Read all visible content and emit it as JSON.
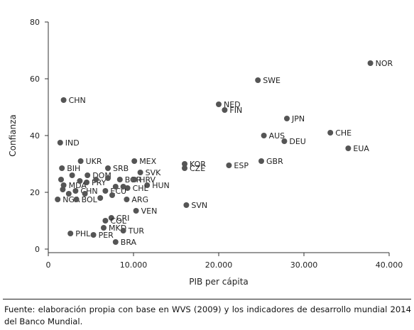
{
  "chart_data": {
    "type": "scatter",
    "title": "",
    "xlabel": "PIB per cápita",
    "ylabel": "Confianza",
    "xlim": [
      0,
      40000
    ],
    "ylim": [
      0,
      80
    ],
    "xticks": [
      0,
      10000,
      20000,
      30000,
      40000
    ],
    "xtick_labels": [
      "0",
      "10.000",
      "20.000",
      "30.000",
      "40.000"
    ],
    "yticks": [
      0,
      20,
      40,
      60,
      80
    ],
    "ytick_labels": [
      "0",
      "20",
      "40",
      "60",
      "80"
    ],
    "grid": false,
    "points": [
      {
        "label": "NOR",
        "x": 37800,
        "y": 65.5
      },
      {
        "label": "SWE",
        "x": 24600,
        "y": 59.5
      },
      {
        "label": "CHN",
        "x": 1800,
        "y": 52.5
      },
      {
        "label": "NED",
        "x": 20000,
        "y": 51.0
      },
      {
        "label": "FIN",
        "x": 20700,
        "y": 49.0
      },
      {
        "label": "JPN",
        "x": 28000,
        "y": 46.0
      },
      {
        "label": "CHE",
        "x": 33100,
        "y": 41.0
      },
      {
        "label": "AUS",
        "x": 25300,
        "y": 40.0
      },
      {
        "label": "DEU",
        "x": 27700,
        "y": 38.0
      },
      {
        "label": "IND",
        "x": 1400,
        "y": 37.5
      },
      {
        "label": "EUA",
        "x": 35200,
        "y": 35.5
      },
      {
        "label": "GBR",
        "x": 25000,
        "y": 31.0
      },
      {
        "label": "MEX",
        "x": 10100,
        "y": 31.0
      },
      {
        "label": "KOR",
        "x": 16000,
        "y": 30.0
      },
      {
        "label": "ESP",
        "x": 21200,
        "y": 29.5
      },
      {
        "label": "CZE",
        "x": 16000,
        "y": 28.5
      },
      {
        "label": "UKR",
        "x": 3800,
        "y": 31.0
      },
      {
        "label": "SRB",
        "x": 7000,
        "y": 28.5
      },
      {
        "label": "BIH",
        "x": 1600,
        "y": 28.5
      },
      {
        "label": "SVK",
        "x": 10800,
        "y": 27.0
      },
      {
        "label": "DOM",
        "x": 4600,
        "y": 26.0
      },
      {
        "label": "BGR",
        "x": 8400,
        "y": 24.5
      },
      {
        "label": "HRV",
        "x": 10100,
        "y": 24.5
      },
      {
        "label": "PRY",
        "x": 4500,
        "y": 23.5
      },
      {
        "label": "HUN",
        "x": 11600,
        "y": 22.5
      },
      {
        "label": "MDA",
        "x": 1800,
        "y": 22.5
      },
      {
        "label": "CHL",
        "x": 9300,
        "y": 21.5
      },
      {
        "label": "CHN",
        "x": 3200,
        "y": 20.5
      },
      {
        "label": "ECU",
        "x": 6700,
        "y": 20.5
      },
      {
        "label": "ARG",
        "x": 9200,
        "y": 17.5
      },
      {
        "label": "NGA",
        "x": 1100,
        "y": 17.5
      },
      {
        "label": "BOL",
        "x": 3300,
        "y": 17.5
      },
      {
        "label": "SVN",
        "x": 16200,
        "y": 15.5
      },
      {
        "label": "VEN",
        "x": 10300,
        "y": 13.5
      },
      {
        "label": "CRI",
        "x": 7400,
        "y": 11.0
      },
      {
        "label": "COL",
        "x": 6700,
        "y": 10.0
      },
      {
        "label": "MKD",
        "x": 6500,
        "y": 7.5
      },
      {
        "label": "TUR",
        "x": 8800,
        "y": 6.5
      },
      {
        "label": "PHL",
        "x": 2600,
        "y": 5.5
      },
      {
        "label": "PER",
        "x": 5300,
        "y": 5.0
      },
      {
        "label": "BRA",
        "x": 7900,
        "y": 2.5
      },
      {
        "label": "",
        "x": 1500,
        "y": 24.5
      },
      {
        "label": "",
        "x": 2800,
        "y": 26.0
      },
      {
        "label": "",
        "x": 3700,
        "y": 24.0
      },
      {
        "label": "",
        "x": 5600,
        "y": 24.5
      },
      {
        "label": "",
        "x": 7000,
        "y": 25.0
      },
      {
        "label": "",
        "x": 1700,
        "y": 21.0
      },
      {
        "label": "",
        "x": 2400,
        "y": 19.5
      },
      {
        "label": "",
        "x": 4300,
        "y": 19.5
      },
      {
        "label": "",
        "x": 6100,
        "y": 18.0
      },
      {
        "label": "",
        "x": 7500,
        "y": 19.0
      },
      {
        "label": "",
        "x": 7900,
        "y": 22.0
      },
      {
        "label": "",
        "x": 8800,
        "y": 22.0
      }
    ]
  },
  "source_note": "Fuente: elaboración propia con base en WVS (2009) y los indicadores de desarrollo mundial 2014 del Banco Mundial."
}
